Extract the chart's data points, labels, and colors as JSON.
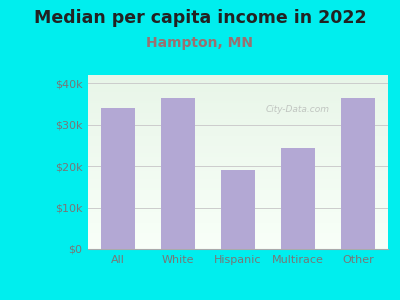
{
  "title": "Median per capita income in 2022",
  "subtitle": "Hampton, MN",
  "categories": [
    "All",
    "White",
    "Hispanic",
    "Multirace",
    "Other"
  ],
  "values": [
    34000,
    36500,
    19000,
    24500,
    36500
  ],
  "bar_color": "#b3a8d4",
  "title_fontsize": 12.5,
  "subtitle_fontsize": 10,
  "subtitle_color": "#9a7070",
  "title_color": "#222222",
  "background_color": "#00eeee",
  "plot_bg_color_topleft": "#e8f5e8",
  "plot_bg_color_bottomright": "#f8fff8",
  "ylim": [
    0,
    42000
  ],
  "yticks": [
    0,
    10000,
    20000,
    30000,
    40000
  ],
  "ytick_labels": [
    "$0",
    "$10k",
    "$20k",
    "$30k",
    "$40k"
  ],
  "grid_color": "#cccccc",
  "tick_color": "#777777",
  "watermark": "City-Data.com"
}
